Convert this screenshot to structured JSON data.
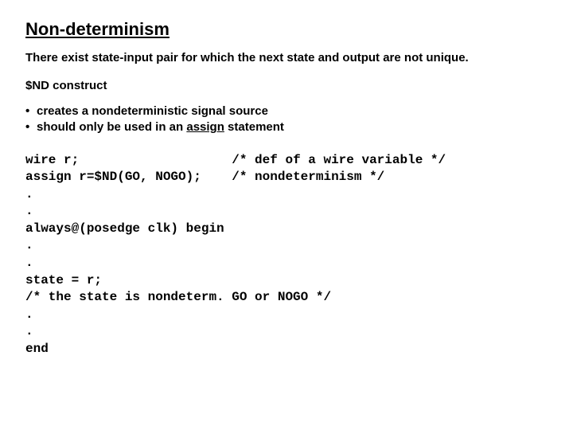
{
  "title": "Non-determinism",
  "intro": "There exist state-input pair for which the next state and output are not unique.",
  "construct": "$ND construct",
  "bullets": {
    "b1": "creates a nondeterministic signal source",
    "b2_pre": "should only be used in an ",
    "b2_uword": "assign",
    "b2_post": " statement"
  },
  "code": {
    "l01a": "wire r;",
    "l01b": "/* def of a wire variable */",
    "l02a": "assign r=$ND(GO, NOGO);",
    "l02b": "/* nondeterminism */",
    "l03": ".",
    "l04": ".",
    "l05": "always@(posedge clk) begin",
    "l06": ".",
    "l07": ".",
    "l08": "state = r;",
    "l09": "/* the state is nondeterm. GO or NOGO */",
    "l10": ".",
    "l11": ".",
    "l12": "end"
  },
  "layout": {
    "code_col2_pad": "     "
  }
}
